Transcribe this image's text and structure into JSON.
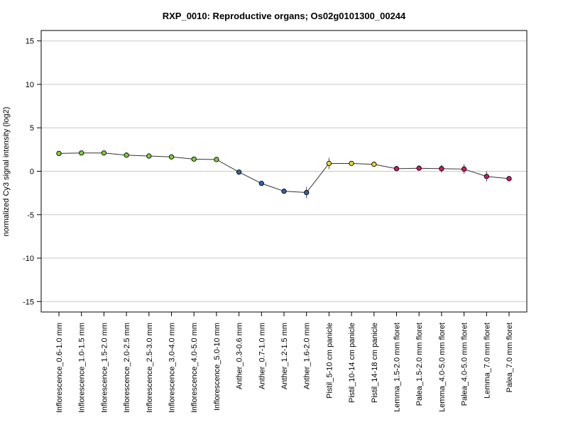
{
  "chart_data": {
    "type": "line",
    "title": "RXP_0010: Reproductive organs; Os02g0101300_00244",
    "xlabel": "",
    "ylabel": "normalized Cy3 signal intensity (log2)",
    "ylim": [
      -16.2,
      16.2
    ],
    "yticks": [
      -15,
      -10,
      -5,
      0,
      5,
      10,
      15
    ],
    "grid": true,
    "grid_lines": [
      -15,
      -10,
      -5,
      0,
      5,
      10,
      15
    ],
    "categories": [
      "Inflorescence_0.6-1.0 mm",
      "Inflorescence_1.0-1.5 mm",
      "Inflorescence_1.5-2.0 mm",
      "Inflorescence_2.0-2.5 mm",
      "Inflorescence_2.5-3.0 mm",
      "Inflorescence_3.0-4.0 mm",
      "Inflorescence_4.0-5.0 mm",
      "Inflorescence_5.0-10 mm",
      "Anther_0.3-0.6 mm",
      "Anther_0.7-1.0 mm",
      "Anther_1.2-1.5 mm",
      "Anther_1.6-2.0 mm",
      "Pistil_5-10 cm panicle",
      "Pistil_10-14 cm panicle",
      "Pistil_14-18 cm panicle",
      "Lemma_1.5-2.0 mm floret",
      "Palea_1.5-2.0 mm floret",
      "Lemma_4.0-5.0 mm floret",
      "Palea_4.0-5.0 mm floret",
      "Lemma_7.0 mm floret",
      "Palea_7.0 mm floret"
    ],
    "series": [
      {
        "values": [
          2.05,
          2.1,
          2.1,
          1.85,
          1.75,
          1.65,
          1.4,
          1.35,
          -0.1,
          -1.4,
          -2.3,
          -2.45,
          0.9,
          0.9,
          0.8,
          0.3,
          0.35,
          0.3,
          0.25,
          -0.6,
          -0.85
        ],
        "error": [
          0.1,
          0.1,
          0.15,
          0.1,
          0.1,
          0.1,
          0.1,
          0.1,
          0.1,
          0.1,
          0.1,
          0.65,
          0.65,
          0.1,
          0.1,
          0.1,
          0.15,
          0.45,
          0.55,
          0.6,
          0.3
        ],
        "point_colors": [
          "#7fcd3a",
          "#7fcd3a",
          "#7fcd3a",
          "#7fcd3a",
          "#7fcd3a",
          "#7fcd3a",
          "#7fcd3a",
          "#7fcd3a",
          "#2f63b8",
          "#2f63b8",
          "#2f63b8",
          "#2f63b8",
          "#f2d531",
          "#f2d531",
          "#f2d531",
          "#d2176f",
          "#d2176f",
          "#d2176f",
          "#d2176f",
          "#d2176f",
          "#d2176f"
        ]
      }
    ]
  }
}
